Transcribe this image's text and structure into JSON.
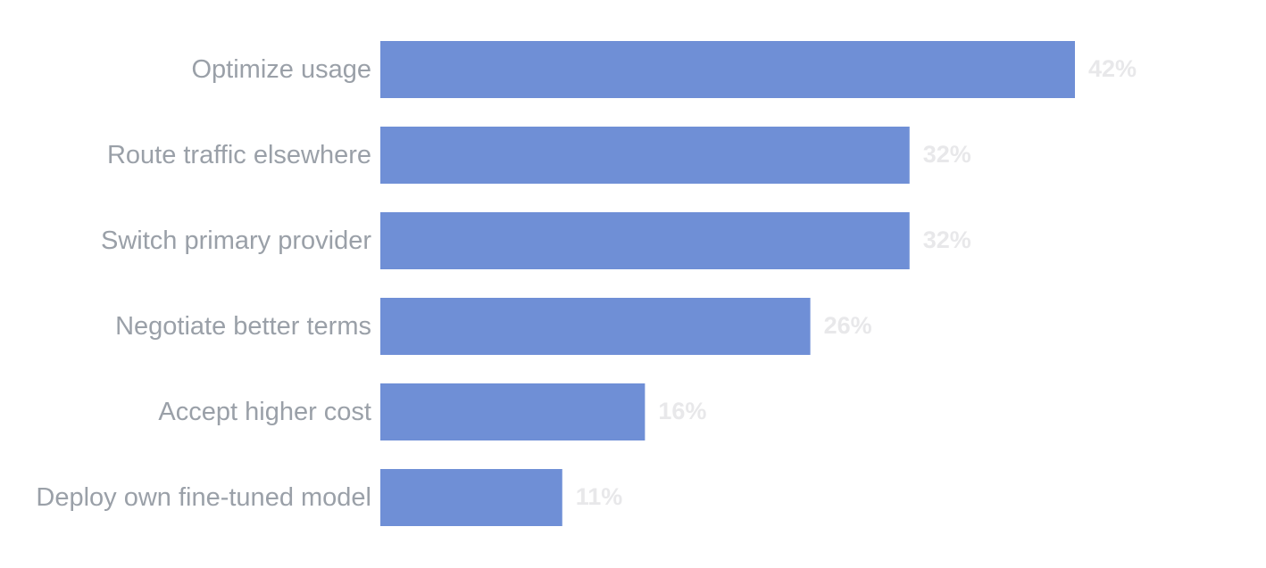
{
  "chart_data": {
    "type": "bar",
    "orientation": "horizontal",
    "categories": [
      "Optimize usage",
      "Route traffic elsewhere",
      "Switch primary provider",
      "Negotiate better terms",
      "Accept higher cost",
      "Deploy own fine-tuned model"
    ],
    "values": [
      42,
      32,
      32,
      26,
      16,
      11
    ],
    "value_labels": [
      "42%",
      "32%",
      "32%",
      "26%",
      "16%",
      "11%"
    ],
    "title": "",
    "xlabel": "",
    "ylabel": "",
    "xlim": [
      0,
      42
    ],
    "grid": false,
    "legend": "none",
    "colors": {
      "bar": "#6f8fd6",
      "category_label": "#9aa0a8",
      "value_label": "#e8e8ea"
    }
  }
}
